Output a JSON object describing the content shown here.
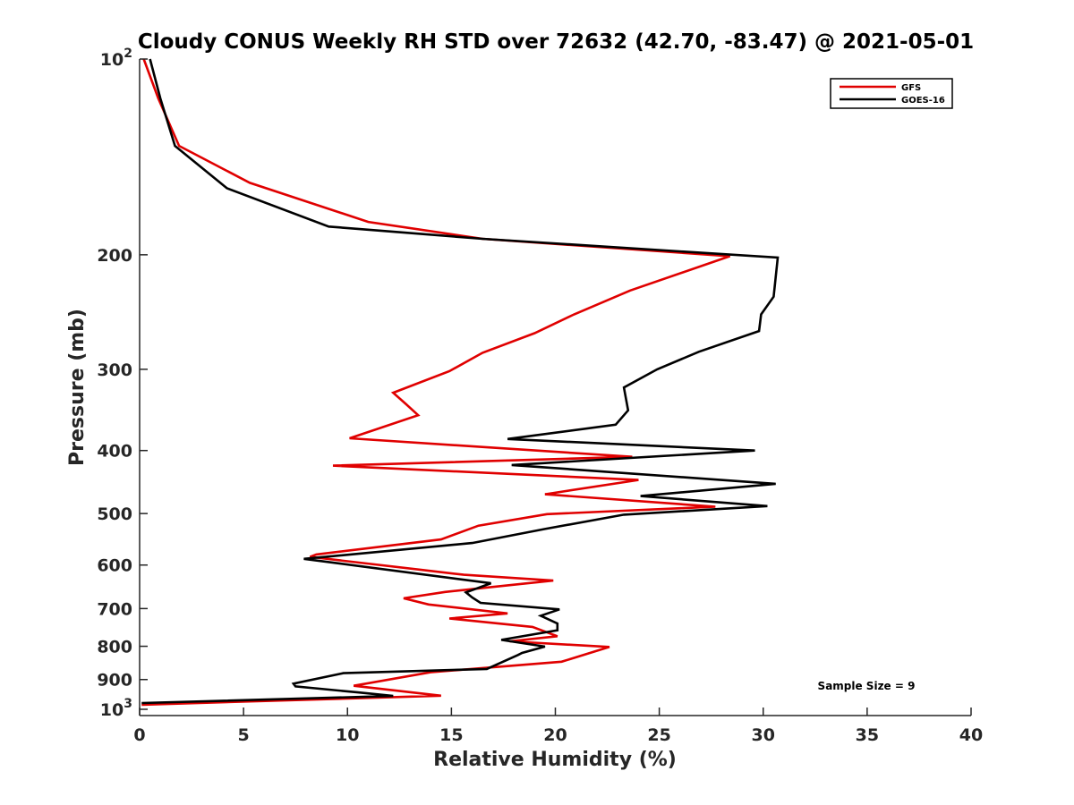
{
  "chart_data": {
    "type": "line",
    "title": "Cloudy CONUS Weekly RH STD over 72632 (42.70, -83.47) @ 2021-05-01",
    "xlabel": "Relative Humidity (%)",
    "ylabel": "Pressure (mb)",
    "xlim": [
      0,
      40
    ],
    "ylim": [
      100,
      1000
    ],
    "yscale": "log",
    "y_reversed": true,
    "grid": false,
    "legend_location": "top-right",
    "x_ticks": [
      "0",
      "5",
      "10",
      "15",
      "20",
      "25",
      "30",
      "35",
      "40"
    ],
    "y_ticks": [
      {
        "value": 100,
        "base": "10",
        "exp": "2"
      },
      {
        "value": 200,
        "label": "200"
      },
      {
        "value": 300,
        "label": "300"
      },
      {
        "value": 400,
        "label": "400"
      },
      {
        "value": 500,
        "label": "500"
      },
      {
        "value": 600,
        "label": "600"
      },
      {
        "value": 700,
        "label": "700"
      },
      {
        "value": 800,
        "label": "800"
      },
      {
        "value": 900,
        "label": "900"
      },
      {
        "value": 1000,
        "base": "10",
        "exp": "3"
      }
    ],
    "annotation": "Sample Size = 9",
    "series": [
      {
        "name": "GFS",
        "color": "#e00000",
        "points": [
          [
            0.2,
            100
          ],
          [
            0.9,
            115
          ],
          [
            1.9,
            136
          ],
          [
            5.3,
            155
          ],
          [
            11.0,
            178
          ],
          [
            16.5,
            189
          ],
          [
            28.4,
            201
          ],
          [
            23.6,
            227
          ],
          [
            20.9,
            247
          ],
          [
            19.0,
            264
          ],
          [
            16.5,
            283
          ],
          [
            14.9,
            302
          ],
          [
            12.2,
            326
          ],
          [
            12.8,
            339
          ],
          [
            13.4,
            353
          ],
          [
            10.1,
            383
          ],
          [
            23.7,
            409
          ],
          [
            9.3,
            422
          ],
          [
            24.0,
            444
          ],
          [
            19.5,
            467
          ],
          [
            27.7,
            488
          ],
          [
            19.6,
            501
          ],
          [
            16.3,
            522
          ],
          [
            14.5,
            548
          ],
          [
            8.5,
            578
          ],
          [
            8.2,
            583
          ],
          [
            15.6,
            621
          ],
          [
            19.9,
            634
          ],
          [
            14.7,
            660
          ],
          [
            12.7,
            675
          ],
          [
            13.9,
            690
          ],
          [
            17.7,
            712
          ],
          [
            14.9,
            725
          ],
          [
            18.9,
            747
          ],
          [
            20.1,
            772
          ],
          [
            17.8,
            786
          ],
          [
            22.6,
            802
          ],
          [
            20.3,
            845
          ],
          [
            14.0,
            877
          ],
          [
            10.3,
            920
          ],
          [
            14.5,
            953
          ],
          [
            0.1,
            984
          ]
        ]
      },
      {
        "name": "GOES-16",
        "color": "#000000",
        "points": [
          [
            0.5,
            100
          ],
          [
            1.0,
            115
          ],
          [
            1.7,
            136
          ],
          [
            4.2,
            158
          ],
          [
            9.1,
            181
          ],
          [
            16.5,
            189
          ],
          [
            30.7,
            202
          ],
          [
            30.5,
            232
          ],
          [
            29.9,
            247
          ],
          [
            29.8,
            262
          ],
          [
            26.9,
            282
          ],
          [
            24.9,
            300
          ],
          [
            23.3,
            320
          ],
          [
            23.5,
            347
          ],
          [
            22.9,
            365
          ],
          [
            17.7,
            384
          ],
          [
            29.6,
            400
          ],
          [
            17.9,
            421
          ],
          [
            30.6,
            450
          ],
          [
            24.1,
            470
          ],
          [
            30.2,
            487
          ],
          [
            23.3,
            502
          ],
          [
            19.5,
            528
          ],
          [
            16.0,
            555
          ],
          [
            7.9,
            587
          ],
          [
            16.9,
            640
          ],
          [
            15.7,
            661
          ],
          [
            16.0,
            673
          ],
          [
            16.4,
            686
          ],
          [
            20.2,
            702
          ],
          [
            19.3,
            718
          ],
          [
            20.1,
            738
          ],
          [
            20.1,
            756
          ],
          [
            17.4,
            782
          ],
          [
            19.5,
            801
          ],
          [
            18.4,
            819
          ],
          [
            18.2,
            825
          ],
          [
            16.7,
            867
          ],
          [
            9.8,
            880
          ],
          [
            7.4,
            913
          ],
          [
            7.5,
            922
          ],
          [
            10.5,
            942
          ],
          [
            12.2,
            954
          ],
          [
            0.1,
            978
          ]
        ]
      }
    ]
  }
}
